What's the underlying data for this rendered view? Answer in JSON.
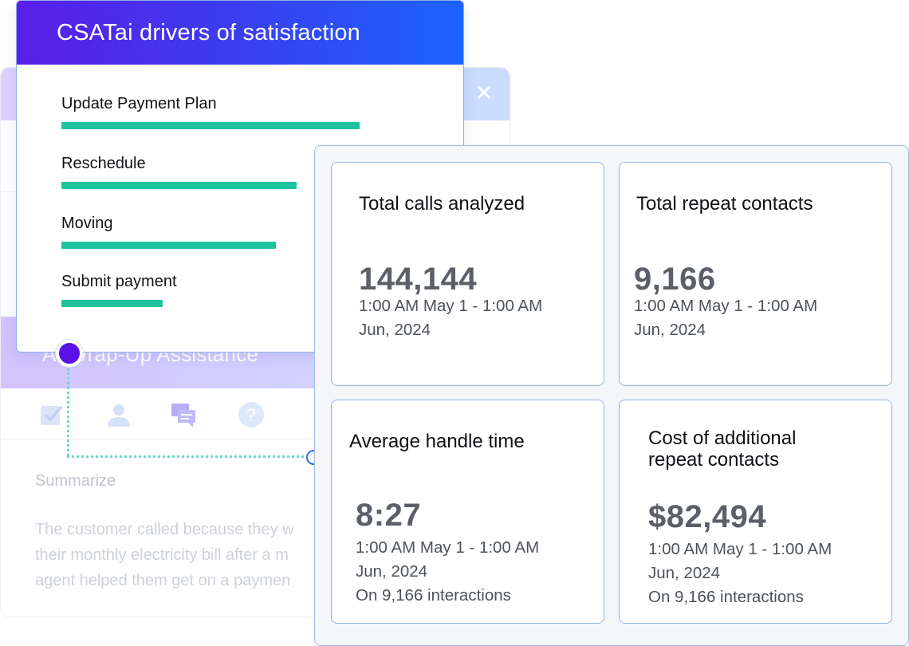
{
  "back_panel": {
    "close_label": "✕",
    "wrap_title": "AI Wrap-Up Assistance",
    "summarize_label": "Summarize",
    "summary_lines": [
      "The customer called because they w",
      "their monthly electricity bill after a m",
      "agent helped them get on a paymen"
    ],
    "icons": [
      "checklist-icon",
      "person-icon",
      "chat-icon",
      "help-icon"
    ]
  },
  "csat": {
    "title": "CSATai drivers of satisfaction",
    "drivers": [
      {
        "label": "Update Payment Plan",
        "value": 1.0
      },
      {
        "label": "Reschedule",
        "value": 0.79
      },
      {
        "label": "Moving",
        "value": 0.72
      },
      {
        "label": "Submit payment",
        "value": 0.34
      }
    ],
    "bar_color": "#1ec29c"
  },
  "metrics": [
    {
      "title": "Total calls analyzed",
      "value": "144,144",
      "range_line1": "1:00 AM May 1 - 1:00 AM",
      "range_line2": "Jun, 2024",
      "note": ""
    },
    {
      "title": "Total repeat contacts",
      "value": "9,166",
      "range_line1": "1:00 AM May 1 - 1:00 AM",
      "range_line2": "Jun, 2024",
      "note": ""
    },
    {
      "title": "Average handle time",
      "value": "8:27",
      "range_line1": "1:00 AM May 1 - 1:00 AM",
      "range_line2": "Jun, 2024",
      "note": "On 9,166 interactions"
    },
    {
      "title_line1": "Cost of additional",
      "title_line2": "repeat contacts",
      "value": "$82,494",
      "range_line1": "1:00 AM May 1 - 1:00 AM",
      "range_line2": "Jun, 2024",
      "note": "On 9,166 interactions"
    }
  ],
  "colors": {
    "header_gradient_start": "#5b1ee8",
    "header_gradient_end": "#1b63ff",
    "accent_green": "#1ec29c",
    "connector_blue": "#2f6fe0",
    "connector_dot_purple": "#5a10e6"
  }
}
